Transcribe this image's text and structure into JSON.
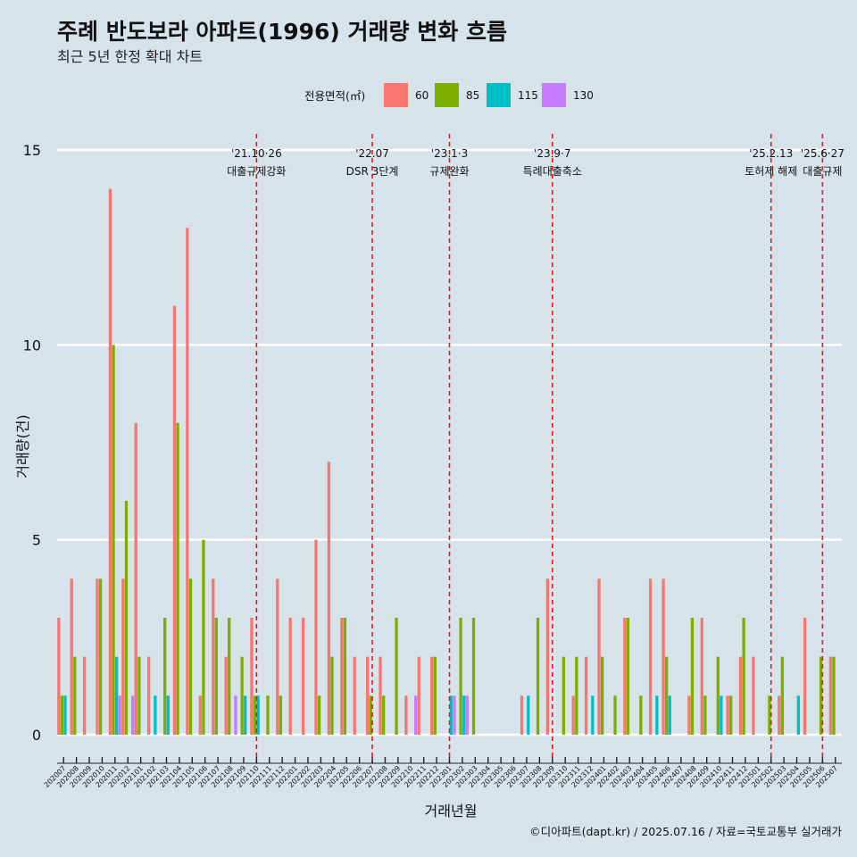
{
  "title": "주례 반도보라 아파트(1996) 거래량 변화 흐름",
  "subtitle": "최근 5년 한정 확대 차트",
  "caption": "©디아파트(dapt.kr) / 2025.07.16 / 자료=국토교통부 실거래가",
  "colors": {
    "60": "#f8766d",
    "85": "#7cae00",
    "115": "#00bfc4",
    "130": "#c77cff",
    "vline": "#e8141a",
    "background": "#d6e3ea",
    "grid": "#ffffff"
  },
  "chart_data": {
    "type": "bar",
    "title": "주례 반도보라 아파트(1996) 거래량 변화 흐름",
    "subtitle": "최근 5년 한정 확대 차트",
    "xlabel": "거래년월",
    "ylabel": "거래량(건)",
    "ylim": [
      0,
      15
    ],
    "yticks": [
      0,
      5,
      10,
      15
    ],
    "grid": true,
    "legend_title": "전용면적(㎡)",
    "legend_position": "top",
    "categories": [
      "202007",
      "202008",
      "202009",
      "202010",
      "202011",
      "202012",
      "202101",
      "202102",
      "202103",
      "202104",
      "202105",
      "202106",
      "202107",
      "202108",
      "202109",
      "202110",
      "202111",
      "202112",
      "202201",
      "202202",
      "202203",
      "202204",
      "202205",
      "202206",
      "202207",
      "202208",
      "202209",
      "202210",
      "202211",
      "202212",
      "202301",
      "202302",
      "202303",
      "202304",
      "202305",
      "202306",
      "202307",
      "202308",
      "202309",
      "202310",
      "202311",
      "202312",
      "202401",
      "202402",
      "202403",
      "202404",
      "202405",
      "202406",
      "202407",
      "202408",
      "202409",
      "202410",
      "202411",
      "202412",
      "202501",
      "202502",
      "202503",
      "202504",
      "202505",
      "202506",
      "202507"
    ],
    "series": [
      {
        "name": "60",
        "values": [
          3,
          4,
          2,
          4,
          14,
          4,
          8,
          2,
          0,
          11,
          13,
          1,
          4,
          2,
          0,
          3,
          0,
          4,
          3,
          3,
          5,
          7,
          3,
          2,
          2,
          2,
          0,
          1,
          2,
          2,
          0,
          0,
          0,
          0,
          0,
          0,
          1,
          0,
          4,
          0,
          1,
          2,
          4,
          0,
          3,
          0,
          4,
          4,
          0,
          1,
          3,
          0,
          1,
          2,
          2,
          0,
          1,
          0,
          3,
          0,
          2
        ]
      },
      {
        "name": "85",
        "values": [
          1,
          2,
          0,
          4,
          10,
          6,
          2,
          0,
          3,
          8,
          4,
          5,
          3,
          3,
          2,
          1,
          1,
          1,
          0,
          0,
          1,
          2,
          3,
          0,
          1,
          1,
          3,
          0,
          0,
          2,
          0,
          3,
          3,
          0,
          0,
          0,
          0,
          3,
          0,
          2,
          2,
          0,
          2,
          1,
          3,
          1,
          0,
          2,
          0,
          3,
          1,
          2,
          1,
          3,
          0,
          1,
          2,
          0,
          0,
          2,
          2
        ]
      },
      {
        "name": "115",
        "values": [
          1,
          0,
          0,
          0,
          2,
          0,
          0,
          1,
          1,
          0,
          0,
          0,
          0,
          0,
          1,
          1,
          0,
          0,
          0,
          0,
          0,
          0,
          0,
          0,
          0,
          0,
          0,
          0,
          0,
          0,
          1,
          1,
          0,
          0,
          0,
          0,
          1,
          0,
          0,
          0,
          0,
          1,
          0,
          0,
          0,
          0,
          1,
          1,
          0,
          0,
          0,
          1,
          0,
          0,
          0,
          0,
          0,
          1,
          0,
          0,
          0
        ]
      },
      {
        "name": "130",
        "values": [
          0,
          0,
          0,
          0,
          1,
          1,
          0,
          0,
          0,
          0,
          0,
          0,
          0,
          1,
          0,
          0,
          0,
          0,
          0,
          0,
          0,
          0,
          0,
          0,
          0,
          0,
          0,
          1,
          0,
          0,
          1,
          1,
          0,
          0,
          0,
          0,
          0,
          0,
          0,
          0,
          0,
          0,
          0,
          0,
          0,
          0,
          0,
          0,
          0,
          0,
          0,
          0,
          0,
          0,
          0,
          0,
          0,
          0,
          0,
          0,
          0
        ]
      }
    ],
    "annotations": [
      {
        "x": "202110",
        "line1": "'21.10·26",
        "line2": "대출규제강화"
      },
      {
        "x": "202207",
        "line1": "'22.07",
        "line2": "DSR 3단계"
      },
      {
        "x": "202301",
        "line1": "'23.1·3",
        "line2": "규제완화"
      },
      {
        "x": "202309",
        "line1": "'23.9·7",
        "line2": "특례대출축소"
      },
      {
        "x": "202502",
        "line1": "'25.2.13",
        "line2": "토허제 해제"
      },
      {
        "x": "202506",
        "line1": "'25.6·27",
        "line2": "대출규제"
      }
    ]
  }
}
